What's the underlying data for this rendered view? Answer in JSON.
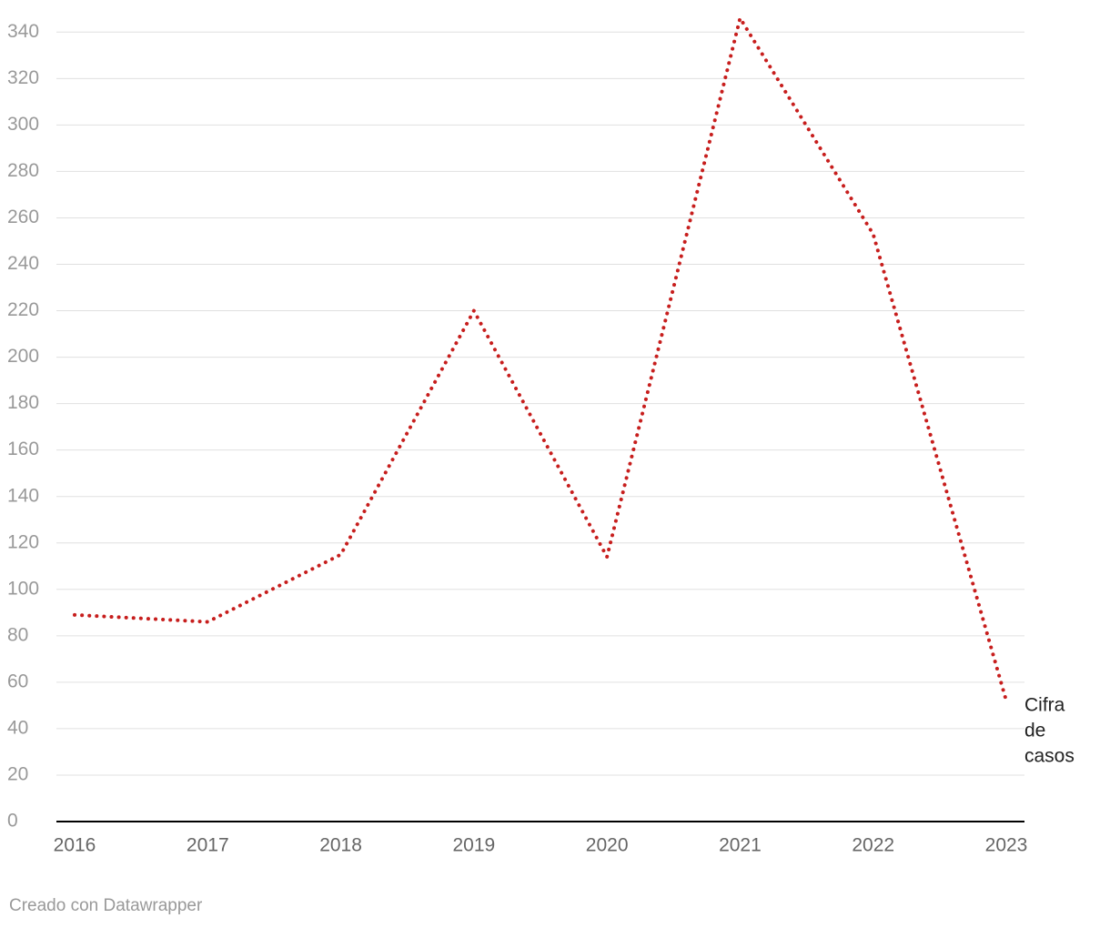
{
  "chart_data": {
    "type": "line",
    "x": [
      2016,
      2017,
      2018,
      2019,
      2020,
      2021,
      2022,
      2023
    ],
    "series": [
      {
        "name": "Cifra de casos",
        "color": "#c71e1d",
        "values": [
          89,
          86,
          115,
          220,
          114,
          346,
          253,
          52
        ]
      }
    ],
    "xlim": [
      2016,
      2023
    ],
    "xticks": [
      2016,
      2017,
      2018,
      2019,
      2020,
      2021,
      2022,
      2023
    ],
    "ylim": [
      0,
      346
    ],
    "yticks": [
      0,
      20,
      40,
      60,
      80,
      100,
      120,
      140,
      160,
      180,
      200,
      220,
      240,
      260,
      280,
      300,
      320,
      340
    ],
    "grid": true,
    "line_style": "dotted",
    "credit": "Creado con Datawrapper"
  }
}
